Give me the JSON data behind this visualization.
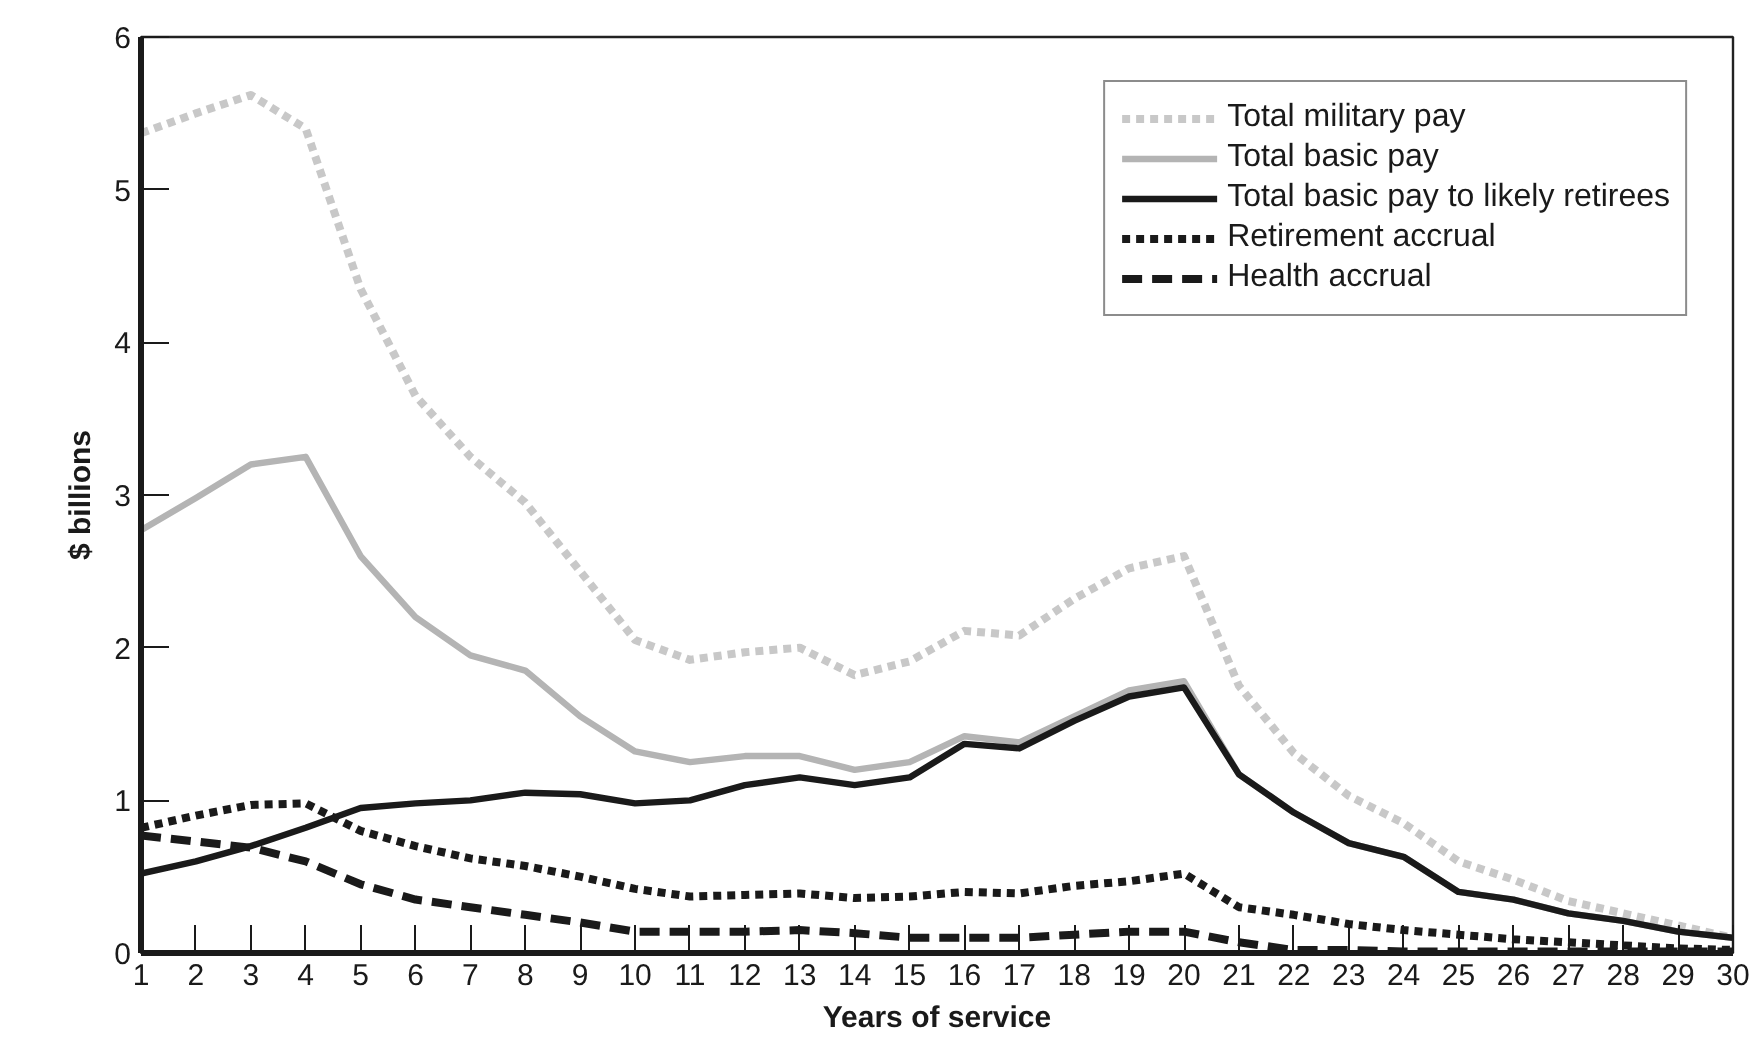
{
  "chart_data": {
    "type": "line",
    "xlabel": "Years of service",
    "ylabel": "$ billions",
    "x": [
      1,
      2,
      3,
      4,
      5,
      6,
      7,
      8,
      9,
      10,
      11,
      12,
      13,
      14,
      15,
      16,
      17,
      18,
      19,
      20,
      21,
      22,
      23,
      24,
      25,
      26,
      27,
      28,
      29,
      30
    ],
    "xlim": [
      1,
      30
    ],
    "xticks": [
      1,
      2,
      3,
      4,
      5,
      6,
      7,
      8,
      9,
      10,
      11,
      12,
      13,
      14,
      15,
      16,
      17,
      18,
      19,
      20,
      21,
      22,
      23,
      24,
      25,
      26,
      27,
      28,
      29,
      30
    ],
    "ylim": [
      0,
      6
    ],
    "yticks": [
      0,
      1,
      2,
      3,
      4,
      5,
      6
    ],
    "grid": false,
    "legend": "top right",
    "marker": "none",
    "series": [
      {
        "name": "Total military pay",
        "color": "#c8c8c8",
        "line_style": "dotted",
        "values": [
          5.37,
          5.5,
          5.62,
          5.4,
          4.35,
          3.65,
          3.25,
          2.95,
          2.5,
          2.05,
          1.92,
          1.97,
          2.0,
          1.82,
          1.91,
          2.11,
          2.08,
          2.32,
          2.52,
          2.6,
          1.75,
          1.31,
          1.03,
          0.85,
          0.6,
          0.48,
          0.34,
          0.26,
          0.18,
          0.1
        ]
      },
      {
        "name": "Total basic pay",
        "color": "#b4b4b4",
        "line_style": "solid",
        "values": [
          2.77,
          2.98,
          3.2,
          3.25,
          2.6,
          2.2,
          1.95,
          1.85,
          1.55,
          1.32,
          1.25,
          1.29,
          1.29,
          1.2,
          1.25,
          1.42,
          1.38,
          1.55,
          1.72,
          1.78,
          1.17,
          0.92,
          0.72,
          0.63,
          0.4,
          0.35,
          0.26,
          0.21,
          0.14,
          0.1
        ]
      },
      {
        "name": "Total basic pay to likely retirees",
        "color": "#1a1a1a",
        "line_style": "solid",
        "values": [
          0.52,
          0.6,
          0.7,
          0.82,
          0.95,
          0.98,
          1.0,
          1.05,
          1.04,
          0.98,
          1.0,
          1.1,
          1.15,
          1.1,
          1.15,
          1.37,
          1.34,
          1.52,
          1.68,
          1.74,
          1.17,
          0.92,
          0.72,
          0.63,
          0.4,
          0.35,
          0.26,
          0.21,
          0.14,
          0.1
        ]
      },
      {
        "name": "Retirement accrual",
        "color": "#1a1a1a",
        "line_style": "dotted",
        "values": [
          0.82,
          0.9,
          0.97,
          0.98,
          0.8,
          0.7,
          0.62,
          0.57,
          0.5,
          0.42,
          0.37,
          0.38,
          0.39,
          0.36,
          0.37,
          0.4,
          0.39,
          0.44,
          0.47,
          0.52,
          0.3,
          0.25,
          0.19,
          0.15,
          0.12,
          0.09,
          0.07,
          0.05,
          0.03,
          0.02
        ]
      },
      {
        "name": "Health accrual",
        "color": "#1a1a1a",
        "line_style": "dashed",
        "values": [
          0.77,
          0.73,
          0.69,
          0.6,
          0.45,
          0.35,
          0.3,
          0.25,
          0.2,
          0.14,
          0.14,
          0.14,
          0.15,
          0.13,
          0.1,
          0.1,
          0.1,
          0.12,
          0.14,
          0.14,
          0.07,
          0.02,
          0.02,
          0.01,
          0.01,
          0.01,
          0.01,
          0.01,
          0.01,
          0.01
        ]
      }
    ]
  }
}
